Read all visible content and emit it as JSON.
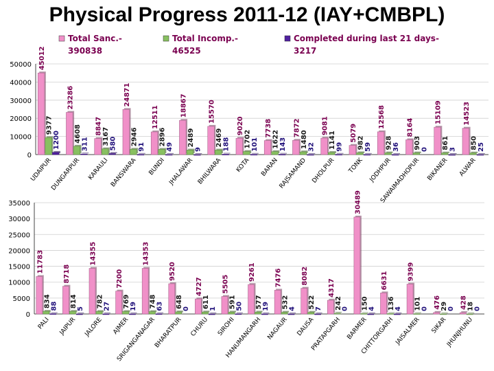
{
  "title": "Physical Progress  2011-12  (IAY+CMBPL)",
  "colors": {
    "sanctioned": "#f090c8",
    "incomplete": "#88c060",
    "completed": "#5020a0",
    "legend_text": "#7a0050"
  },
  "legend": [
    {
      "key": "sanctioned",
      "label": "Total Sanc.-",
      "value": "390838"
    },
    {
      "key": "incomplete",
      "label": "Total Incomp.-",
      "value": "46525"
    },
    {
      "key": "completed",
      "label": "Completed during last 21 days-",
      "value": "3217"
    }
  ],
  "chart_data": [
    {
      "type": "bar",
      "title": "Physical Progress  2011-12  (IAY+CMBPL)",
      "ylim": [
        0,
        50000
      ],
      "yticks": [
        0,
        10000,
        20000,
        30000,
        40000,
        50000
      ],
      "grid": true,
      "legend_position": "top",
      "categories": [
        "UDAIPUR",
        "DUNGARPUR",
        "KARAULI",
        "BANSWARA",
        "BUNDI",
        "JHALAWAR",
        "BHILWARA",
        "KOTA",
        "BARAN",
        "RAJSAMAND",
        "DHOLPUR",
        "TONK",
        "JODHPUR",
        "SAWAIMADHOPUR",
        "BIKANER",
        "ALWAR"
      ],
      "series": [
        {
          "name": "Total Sanc.",
          "key": "sanctioned",
          "values": [
            45012,
            23286,
            8847,
            24871,
            12511,
            18867,
            15570,
            9020,
            7738,
            7872,
            9081,
            5079,
            12568,
            8164,
            15109,
            14523
          ]
        },
        {
          "name": "Total Incomp.",
          "key": "incomplete",
          "values": [
            9377,
            4608,
            3167,
            2946,
            2896,
            2489,
            2469,
            1702,
            1622,
            1480,
            1141,
            982,
            928,
            903,
            861,
            850
          ]
        },
        {
          "name": "Completed during last 21 days",
          "key": "completed",
          "values": [
            1200,
            311,
            580,
            91,
            49,
            9,
            188,
            101,
            143,
            32,
            99,
            59,
            36,
            0,
            3,
            25
          ]
        }
      ]
    },
    {
      "type": "bar",
      "ylim": [
        0,
        35000
      ],
      "yticks": [
        0,
        5000,
        10000,
        15000,
        20000,
        25000,
        30000,
        35000
      ],
      "grid": true,
      "categories": [
        "PALI",
        "JAIPUR",
        "JALORE",
        "AJMER",
        "SRIGANGANAGAR",
        "BHARATPUR",
        "CHURU",
        "SIROHI",
        "HANUMANGARH",
        "NAGAUR",
        "DAUSA",
        "PRATAPGARH",
        "BARMER",
        "CHITTORGARH",
        "JAISALMER",
        "SIKAR",
        "JHUNJHUNU"
      ],
      "series": [
        {
          "name": "Total Sanc.",
          "key": "sanctioned",
          "values": [
            11783,
            8718,
            14355,
            7200,
            14353,
            9520,
            4727,
            5505,
            9261,
            7476,
            8082,
            4317,
            30489,
            6631,
            9399,
            476,
            428
          ]
        },
        {
          "name": "Total Incomp.",
          "key": "incomplete",
          "values": [
            834,
            814,
            782,
            769,
            748,
            648,
            611,
            591,
            577,
            532,
            522,
            242,
            150,
            136,
            101,
            29,
            18
          ]
        },
        {
          "name": "Completed during last 21 days",
          "key": "completed",
          "values": [
            88,
            5,
            27,
            19,
            63,
            0,
            1,
            50,
            19,
            4,
            7,
            0,
            4,
            4,
            0,
            0,
            0
          ]
        }
      ]
    }
  ]
}
